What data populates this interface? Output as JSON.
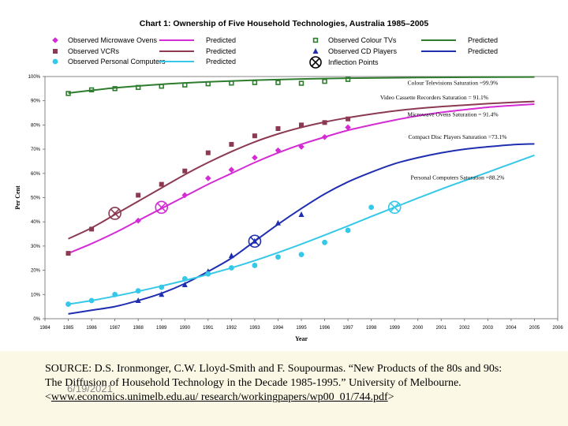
{
  "colors": {
    "tv": "#2e7d2e",
    "vcr": "#8b3a52",
    "microwave": "#d42bd4",
    "cd": "#1f2fb0",
    "pc": "#35c8e8",
    "inflection": "#000000",
    "footer_bg": "#fbf9e6"
  },
  "chart_data": {
    "type": "scatter",
    "title": "Chart 1: Ownership of Five Household Technologies, Australia 1985–2005",
    "xlabel": "Year",
    "ylabel": "Per Cent",
    "xlim": [
      1984,
      2006
    ],
    "ylim": [
      0,
      100
    ],
    "x_ticks": [
      "1984",
      "1985",
      "1986",
      "1987",
      "1988",
      "1989",
      "1990",
      "1991",
      "1992",
      "1993",
      "1994",
      "1995",
      "1996",
      "1997",
      "1998",
      "1999",
      "2000",
      "2001",
      "2002",
      "2003",
      "2004",
      "2005",
      "2006"
    ],
    "y_ticks": [
      "0%",
      "10%",
      "20%",
      "30%",
      "40%",
      "50%",
      "60%",
      "70%",
      "80%",
      "90%",
      "100%"
    ],
    "legend": [
      {
        "key": "microwave_obs",
        "label": "Observed Microwave Ovens",
        "marker": "diamond",
        "color": "microwave"
      },
      {
        "key": "microwave_pred",
        "label": "Predicted",
        "line": true,
        "color": "microwave"
      },
      {
        "key": "vcr_obs",
        "label": "Observed VCRs",
        "marker": "square",
        "color": "vcr"
      },
      {
        "key": "vcr_pred",
        "label": "Predicted",
        "line": true,
        "color": "vcr"
      },
      {
        "key": "pc_obs",
        "label": "Observed Personal Computers",
        "marker": "circle",
        "color": "pc"
      },
      {
        "key": "pc_pred",
        "label": "Predicted",
        "line": true,
        "color": "pc"
      },
      {
        "key": "tv_obs",
        "label": "Observed Colour TVs",
        "marker": "open-square",
        "color": "tv"
      },
      {
        "key": "tv_pred",
        "label": "Predicted",
        "line": true,
        "color": "tv"
      },
      {
        "key": "cd_obs",
        "label": "Observed    CD Players",
        "marker": "triangle",
        "color": "cd"
      },
      {
        "key": "cd_pred",
        "label": "Predicted",
        "line": true,
        "color": "cd"
      },
      {
        "key": "inflection",
        "label": "Inflection Points",
        "marker": "circle-x",
        "color": "inflection"
      }
    ],
    "series": [
      {
        "name": "Colour TVs",
        "color": "tv",
        "marker": "open-square",
        "observed": [
          [
            1985,
            93
          ],
          [
            1986,
            94.5
          ],
          [
            1987,
            95
          ],
          [
            1988,
            95.5
          ],
          [
            1989,
            96
          ],
          [
            1990,
            96.5
          ],
          [
            1991,
            97
          ],
          [
            1992,
            97.3
          ],
          [
            1993,
            97.5
          ],
          [
            1994,
            97.5
          ],
          [
            1995,
            97.2
          ],
          [
            1996,
            98
          ],
          [
            1997,
            98.8
          ]
        ],
        "predicted": [
          [
            1985,
            93.2
          ],
          [
            1987,
            95.3
          ],
          [
            1989,
            96.8
          ],
          [
            1991,
            97.8
          ],
          [
            1993,
            98.5
          ],
          [
            1995,
            99
          ],
          [
            1997,
            99.3
          ],
          [
            2000,
            99.6
          ],
          [
            2005,
            99.8
          ]
        ],
        "saturation_label": "Colour Televisions Saturation =99.9%"
      },
      {
        "name": "VCRs",
        "color": "vcr",
        "marker": "square",
        "observed": [
          [
            1985,
            27
          ],
          [
            1986,
            37
          ],
          [
            1988,
            51
          ],
          [
            1989,
            55.5
          ],
          [
            1990,
            61
          ],
          [
            1991,
            68.5
          ],
          [
            1992,
            72
          ],
          [
            1993,
            75.5
          ],
          [
            1994,
            78.5
          ],
          [
            1995,
            80
          ],
          [
            1996,
            81
          ],
          [
            1997,
            82.5
          ]
        ],
        "predicted": [
          [
            1985,
            33
          ],
          [
            1986,
            37.5
          ],
          [
            1987,
            43
          ],
          [
            1988,
            48.5
          ],
          [
            1989,
            54
          ],
          [
            1990,
            59.5
          ],
          [
            1991,
            64.5
          ],
          [
            1992,
            69
          ],
          [
            1993,
            73
          ],
          [
            1994,
            76.3
          ],
          [
            1995,
            79
          ],
          [
            1996,
            81.2
          ],
          [
            1997,
            83
          ],
          [
            1998,
            84.5
          ],
          [
            1999,
            85.8
          ],
          [
            2000,
            86.8
          ],
          [
            2001,
            87.6
          ],
          [
            2002,
            88.2
          ],
          [
            2003,
            88.8
          ],
          [
            2004,
            89.3
          ],
          [
            2005,
            89.7
          ]
        ],
        "saturation_label": "Video Cassette Recorders Saturation = 91.1%"
      },
      {
        "name": "Microwave Ovens",
        "color": "microwave",
        "marker": "diamond",
        "observed": [
          [
            1988,
            40.5
          ],
          [
            1990,
            51
          ],
          [
            1991,
            58
          ],
          [
            1992,
            61.5
          ],
          [
            1993,
            66.5
          ],
          [
            1994,
            69.5
          ],
          [
            1995,
            71
          ],
          [
            1996,
            75
          ],
          [
            1997,
            79
          ]
        ],
        "predicted": [
          [
            1985,
            27
          ],
          [
            1986,
            31
          ],
          [
            1987,
            35.5
          ],
          [
            1988,
            40.5
          ],
          [
            1989,
            45.5
          ],
          [
            1990,
            50.5
          ],
          [
            1991,
            55.5
          ],
          [
            1992,
            60
          ],
          [
            1993,
            64.5
          ],
          [
            1994,
            68.5
          ],
          [
            1995,
            72
          ],
          [
            1996,
            75
          ],
          [
            1997,
            77.8
          ],
          [
            1998,
            80
          ],
          [
            1999,
            82
          ],
          [
            2000,
            83.8
          ],
          [
            2001,
            85.2
          ],
          [
            2002,
            86.3
          ],
          [
            2003,
            87.3
          ],
          [
            2004,
            88
          ],
          [
            2005,
            88.6
          ]
        ],
        "saturation_label": "Microwave Ovens Saturation = 91.4%"
      },
      {
        "name": "CD Players",
        "color": "cd",
        "marker": "triangle",
        "observed": [
          [
            1988,
            7.5
          ],
          [
            1989,
            10
          ],
          [
            1990,
            14
          ],
          [
            1991,
            19.5
          ],
          [
            1992,
            26
          ],
          [
            1993,
            32
          ],
          [
            1994,
            39.5
          ],
          [
            1995,
            43
          ]
        ],
        "predicted": [
          [
            1985,
            2
          ],
          [
            1986,
            3.5
          ],
          [
            1987,
            5
          ],
          [
            1988,
            7.5
          ],
          [
            1989,
            10.5
          ],
          [
            1990,
            14.5
          ],
          [
            1991,
            19.5
          ],
          [
            1992,
            25
          ],
          [
            1993,
            32
          ],
          [
            1994,
            39
          ],
          [
            1995,
            45.5
          ],
          [
            1996,
            51.5
          ],
          [
            1997,
            56.5
          ],
          [
            1998,
            60.5
          ],
          [
            1999,
            64
          ],
          [
            2000,
            66.5
          ],
          [
            2001,
            68.5
          ],
          [
            2002,
            70
          ],
          [
            2003,
            71
          ],
          [
            2004,
            71.8
          ],
          [
            2005,
            72.2
          ]
        ],
        "saturation_label": "Compact Disc Players Saturation =73.1%"
      },
      {
        "name": "Personal Computers",
        "color": "pc",
        "marker": "circle",
        "observed": [
          [
            1985,
            6
          ],
          [
            1986,
            7.5
          ],
          [
            1987,
            10
          ],
          [
            1988,
            11.5
          ],
          [
            1989,
            13
          ],
          [
            1990,
            16.5
          ],
          [
            1991,
            18.5
          ],
          [
            1992,
            21
          ],
          [
            1993,
            22
          ],
          [
            1994,
            25.5
          ],
          [
            1995,
            26.5
          ],
          [
            1996,
            31.5
          ],
          [
            1997,
            36.5
          ],
          [
            1998,
            46
          ]
        ],
        "predicted": [
          [
            1985,
            6
          ],
          [
            1986,
            7.5
          ],
          [
            1987,
            9.3
          ],
          [
            1988,
            11.3
          ],
          [
            1989,
            13.5
          ],
          [
            1990,
            15.8
          ],
          [
            1991,
            18.3
          ],
          [
            1992,
            21
          ],
          [
            1993,
            24
          ],
          [
            1994,
            27.3
          ],
          [
            1995,
            30.8
          ],
          [
            1996,
            34.5
          ],
          [
            1997,
            38.3
          ],
          [
            1998,
            42.2
          ],
          [
            1999,
            46
          ],
          [
            2000,
            49.8
          ],
          [
            2001,
            53.5
          ],
          [
            2002,
            57
          ],
          [
            2003,
            60.5
          ],
          [
            2004,
            64
          ],
          [
            2005,
            67.5
          ]
        ],
        "saturation_label": "Personal Computers Saturation =88.2%"
      }
    ],
    "inflection_points": [
      {
        "series": "VCRs",
        "x": 1987,
        "y": 43.5
      },
      {
        "series": "Microwave Ovens",
        "x": 1989,
        "y": 46
      },
      {
        "series": "CD Players",
        "x": 1993,
        "y": 32
      },
      {
        "series": "Personal Computers",
        "x": 1999,
        "y": 46
      }
    ],
    "saturation_label_anchors": [
      {
        "series": "Colour TVs",
        "x": 2001.5,
        "y": 96.5
      },
      {
        "series": "VCRs",
        "x": 2000.7,
        "y": 90.5
      },
      {
        "series": "Microwave Ovens",
        "x": 2001.5,
        "y": 83.5
      },
      {
        "series": "CD Players",
        "x": 2001.7,
        "y": 74.3
      },
      {
        "series": "Personal Computers",
        "x": 2001.7,
        "y": 57.5
      }
    ]
  },
  "footer": {
    "source_line1": "SOURCE: D.S. Ironmonger, C.W. Lloyd-Smith and F. Soupourmas. “New Products of the 80s and 90s:",
    "source_line2": "The Diffusion of Household Technology in the Decade 1985-1995.” University of Melbourne.",
    "link_prefix": "<",
    "link_text": "www.economics.unimelb.edu.au/ research/workingpapers/wp00_01/744.pdf",
    "link_suffix": ">",
    "date": "6/19/2021"
  }
}
